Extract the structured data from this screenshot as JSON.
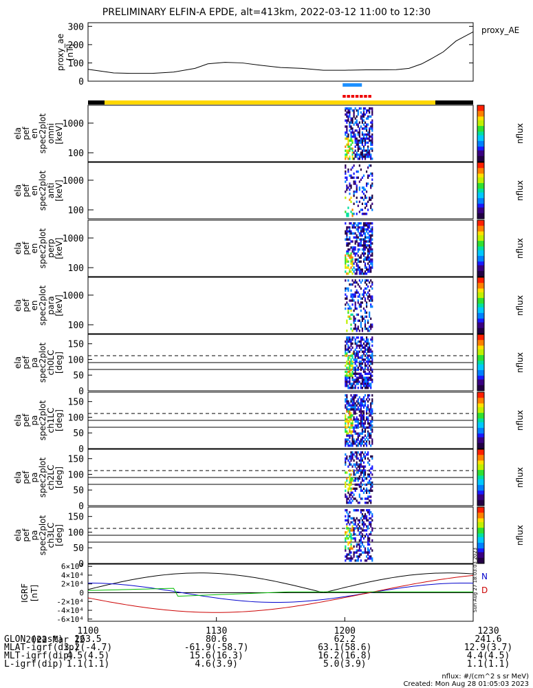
{
  "title": "PRELIMINARY ELFIN-A EPDE, alt=413km, 2022-03-12 11:00 to 12:30",
  "ae_label": "proxy_AE",
  "side_stamp": "Sun Aug 27 18:03:03 2023",
  "colorbar_label": "nflux",
  "panels": [
    {
      "ylabel": [
        "ela",
        "pef",
        "en",
        "spec2plot",
        "omni",
        "[keV]"
      ],
      "kind": "energy"
    },
    {
      "ylabel": [
        "ela",
        "pef",
        "en",
        "spec2plot",
        "anti",
        "[keV]"
      ],
      "kind": "energy"
    },
    {
      "ylabel": [
        "ela",
        "pef",
        "en",
        "spec2plot",
        "perp",
        "[keV]"
      ],
      "kind": "energy"
    },
    {
      "ylabel": [
        "ela",
        "pef",
        "en",
        "spec2plot",
        "para",
        "[keV]"
      ],
      "kind": "energy"
    },
    {
      "ylabel": [
        "ela",
        "pef",
        "pa",
        "spec2plot",
        "ch0LC",
        "[deg]"
      ],
      "kind": "pa"
    },
    {
      "ylabel": [
        "ela",
        "pef",
        "pa",
        "spec2plot",
        "ch1LC",
        "[deg]"
      ],
      "kind": "pa"
    },
    {
      "ylabel": [
        "ela",
        "pef",
        "pa",
        "spec2plot",
        "ch2LC",
        "[deg]"
      ],
      "kind": "pa"
    },
    {
      "ylabel": [
        "ela",
        "pef",
        "pa",
        "spec2plot",
        "ch3LC",
        "[deg]"
      ],
      "kind": "pa"
    }
  ],
  "igrf_ylabel": [
    "IGRF",
    "[nT]"
  ],
  "igrf_legend": [
    "N",
    "D"
  ],
  "footer": {
    "rows": [
      [
        "2022 Mar 12",
        "1100",
        "1130",
        "1200",
        "1230"
      ],
      [
        "GLON (east)",
        "263.5",
        "80.6",
        "62.2",
        "241.6"
      ],
      [
        "MLAT-igrf(dip)",
        "3.2(-4.7)",
        "-61.9(-58.7)",
        "63.1(58.6)",
        "12.9(3.7)"
      ],
      [
        "MLT-igrf(dip)",
        "4.5(4.5)",
        "15.6(16.3)",
        "16.2(16.8)",
        "4.4(4.5)"
      ],
      [
        "L-igrf(dip)",
        "1.1(1.1)",
        "4.6(3.9)",
        "5.0(3.9)",
        "1.1(1.1)"
      ]
    ],
    "units_note": "nflux: #/(cm^2 s sr MeV)",
    "created": "Created: Mon Aug 28 01:05:03 2023"
  },
  "chart_data": {
    "type": "line",
    "x_range": [
      "11:00",
      "12:30"
    ],
    "x_ticks": [
      "1100",
      "1130",
      "1200",
      "1230"
    ],
    "proxy_AE": {
      "ylabel": "proxy_ae [nT]",
      "ylim": [
        0,
        320
      ],
      "yticks": [
        0,
        100,
        200,
        300
      ],
      "t_min": [
        0,
        3,
        6,
        10,
        15,
        20,
        25,
        28,
        32,
        36,
        40,
        45,
        50,
        55,
        60,
        65,
        68,
        72,
        75,
        78,
        80,
        83,
        86,
        90
      ],
      "values": [
        65,
        55,
        45,
        43,
        43,
        50,
        70,
        95,
        103,
        100,
        88,
        75,
        70,
        60,
        60,
        62,
        62,
        63,
        70,
        95,
        120,
        160,
        220,
        270
      ]
    },
    "energy_panels": {
      "ylim_keV": [
        50,
        4000
      ],
      "yticks": [
        100,
        1000
      ],
      "log": true,
      "colorbar_range": [
        1,
        10000000
      ]
    },
    "pa_panels": {
      "ylim_deg": [
        0,
        180
      ],
      "yticks": [
        0,
        50,
        100,
        150
      ],
      "reference_lines_deg": [
        112,
        90,
        68
      ],
      "colorbar_ranges": [
        [
          1000,
          10000000
        ],
        [
          10,
          1000000
        ],
        [
          10,
          1000000
        ],
        [
          10,
          10000
        ]
      ]
    },
    "igrf": {
      "ylim": [
        -65000,
        65000
      ],
      "yticks_label": [
        "6×10⁴",
        "4×10⁴",
        "2×10⁴",
        "0",
        "-2×10⁴",
        "-4×10⁴",
        "-6×10⁴"
      ],
      "series": [
        {
          "name": "N",
          "color": "#0000cc"
        },
        {
          "name": "D",
          "color": "#cc0000"
        }
      ]
    },
    "science_zone": {
      "start_min": 59.5,
      "end_min": 64
    }
  },
  "colors": {
    "sci_blue": "#1e90ff",
    "sci_red": "#ee0000",
    "orbit_yellow": "#ffd700"
  }
}
